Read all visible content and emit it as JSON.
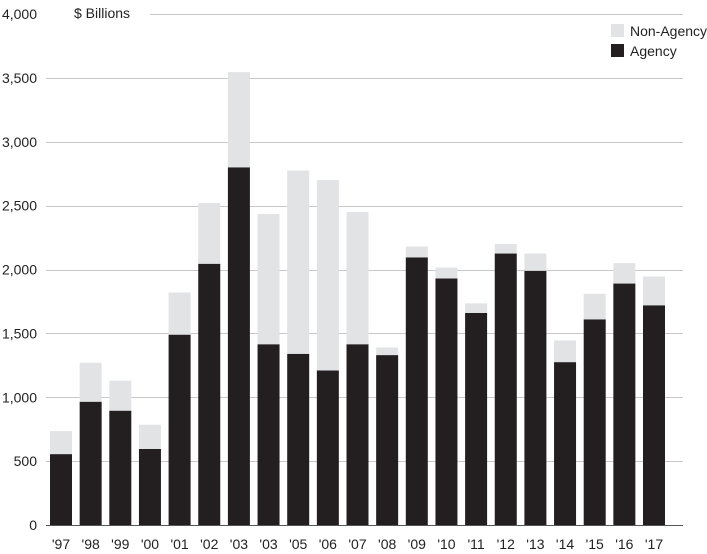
{
  "chart_data": {
    "type": "bar",
    "stacked": true,
    "unit_label": "$ Billions",
    "categories": [
      "'97",
      "'98",
      "'99",
      "'00",
      "'01",
      "'02",
      "'03",
      "'03",
      "'05",
      "'06",
      "'07",
      "'08",
      "'09",
      "'10",
      "'11",
      "'12",
      "'13",
      "'14",
      "'15",
      "'16",
      "'17"
    ],
    "series": [
      {
        "name": "Agency",
        "color": "#231f20",
        "values": [
          555,
          965,
          895,
          595,
          1490,
          2045,
          2800,
          1415,
          1340,
          1210,
          1415,
          1330,
          2095,
          1930,
          1660,
          2125,
          1990,
          1275,
          1610,
          1890,
          1720
        ]
      },
      {
        "name": "Non-Agency",
        "color": "#e2e3e4",
        "values": [
          180,
          305,
          235,
          190,
          330,
          475,
          745,
          1020,
          1435,
          1490,
          1035,
          60,
          85,
          85,
          75,
          75,
          135,
          170,
          200,
          160,
          225
        ]
      }
    ],
    "yticks": [
      "0",
      "500",
      "1,000",
      "1,500",
      "2,000",
      "2,500",
      "3,000",
      "3,500",
      "4,000"
    ],
    "ylim": [
      0,
      4000
    ],
    "legend": {
      "placement": "top-right",
      "order": [
        "Non-Agency",
        "Agency"
      ]
    },
    "grid": true
  }
}
